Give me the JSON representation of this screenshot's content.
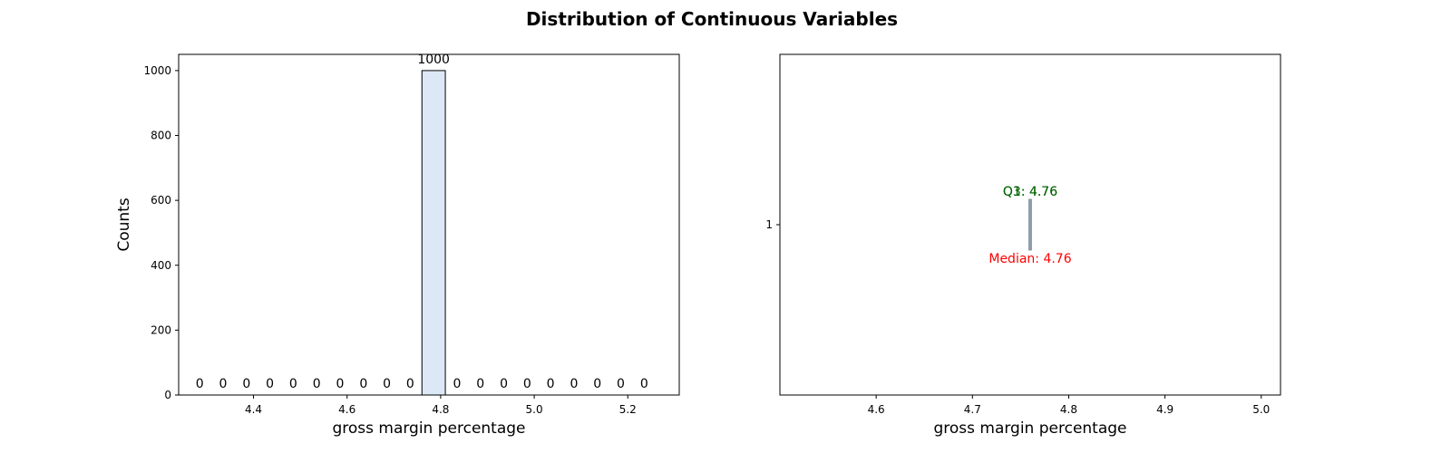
{
  "suptitle": "Distribution of Continuous Variables",
  "chart_data": [
    {
      "type": "bar",
      "chart": "histogram",
      "title": "",
      "xlabel": "gross margin percentage",
      "ylabel": "Counts",
      "xlim": [
        4.24,
        5.31
      ],
      "ylim": [
        0,
        1050
      ],
      "xticks": [
        4.4,
        4.6,
        4.8,
        5.0,
        5.2
      ],
      "yticks": [
        0,
        200,
        400,
        600,
        800,
        1000
      ],
      "bar_color": "#dce8f5",
      "edge_color": "#000000",
      "bins": [
        {
          "x0": 4.26,
          "x1": 4.31,
          "count": 0
        },
        {
          "x0": 4.31,
          "x1": 4.36,
          "count": 0
        },
        {
          "x0": 4.36,
          "x1": 4.41,
          "count": 0
        },
        {
          "x0": 4.41,
          "x1": 4.46,
          "count": 0
        },
        {
          "x0": 4.46,
          "x1": 4.51,
          "count": 0
        },
        {
          "x0": 4.51,
          "x1": 4.56,
          "count": 0
        },
        {
          "x0": 4.56,
          "x1": 4.61,
          "count": 0
        },
        {
          "x0": 4.61,
          "x1": 4.66,
          "count": 0
        },
        {
          "x0": 4.66,
          "x1": 4.71,
          "count": 0
        },
        {
          "x0": 4.71,
          "x1": 4.76,
          "count": 0
        },
        {
          "x0": 4.76,
          "x1": 4.81,
          "count": 1000
        },
        {
          "x0": 4.81,
          "x1": 4.86,
          "count": 0
        },
        {
          "x0": 4.86,
          "x1": 4.91,
          "count": 0
        },
        {
          "x0": 4.91,
          "x1": 4.96,
          "count": 0
        },
        {
          "x0": 4.96,
          "x1": 5.01,
          "count": 0
        },
        {
          "x0": 5.01,
          "x1": 5.06,
          "count": 0
        },
        {
          "x0": 5.06,
          "x1": 5.11,
          "count": 0
        },
        {
          "x0": 5.11,
          "x1": 5.16,
          "count": 0
        },
        {
          "x0": 5.16,
          "x1": 5.21,
          "count": 0
        },
        {
          "x0": 5.21,
          "x1": 5.26,
          "count": 0
        }
      ]
    },
    {
      "type": "box",
      "title": "",
      "xlabel": "gross margin percentage",
      "xlim": [
        4.5,
        5.02
      ],
      "xticks": [
        4.6,
        4.7,
        4.8,
        4.9,
        5.0
      ],
      "yticks": [
        1
      ],
      "box_color": "#a9bcd0",
      "median_color": "#708090",
      "stats": {
        "q1": 4.76,
        "median": 4.76,
        "q3": 4.76
      },
      "labels": [
        {
          "text": "Q1: 4.76",
          "color": "#006400"
        },
        {
          "text": "Q3: 4.76",
          "color": "#006400"
        },
        {
          "text": "Median: 4.76",
          "color": "#ff0000"
        }
      ]
    }
  ]
}
